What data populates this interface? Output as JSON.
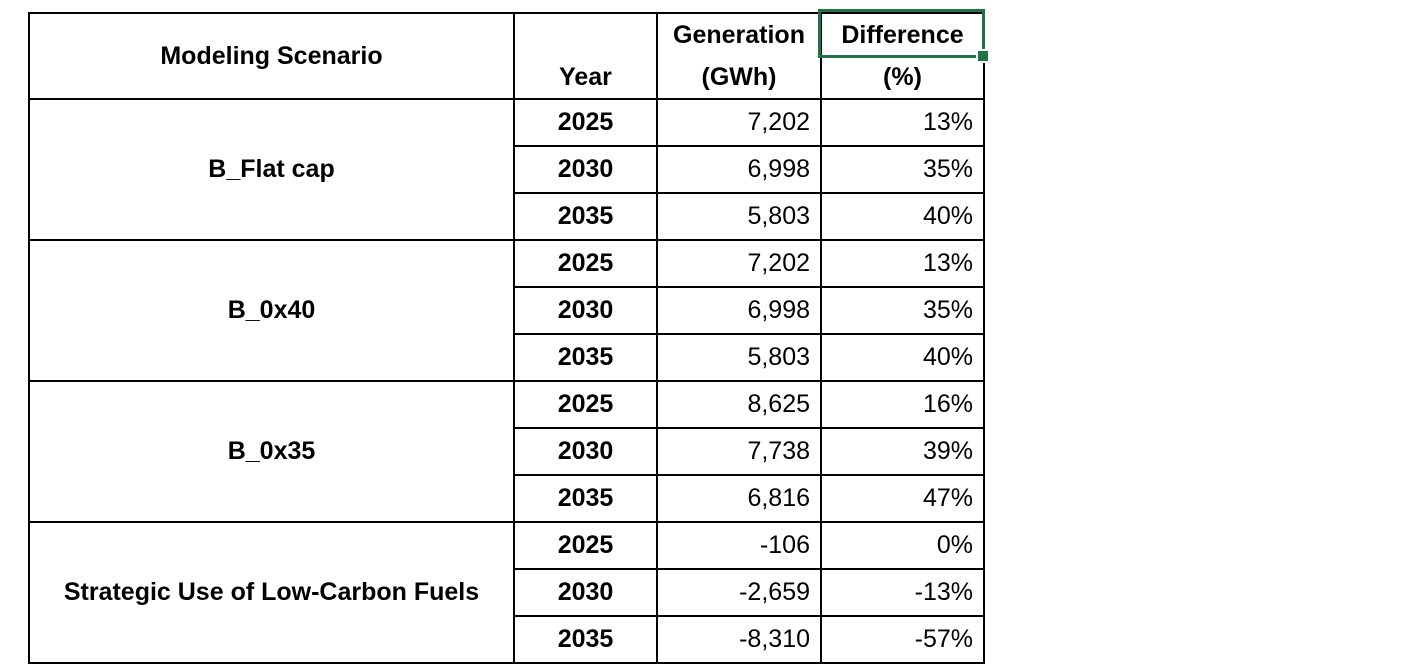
{
  "table": {
    "headers": {
      "scenario": "Modeling Scenario",
      "year": "Year",
      "generation_line1": "Generation",
      "generation_line2": "(GWh)",
      "difference_line1": "Difference",
      "difference_line2": "(%)"
    },
    "groups": [
      {
        "scenario": "B_Flat cap",
        "rows": [
          {
            "year": "2025",
            "generation": "7,202",
            "difference": "13%"
          },
          {
            "year": "2030",
            "generation": "6,998",
            "difference": "35%"
          },
          {
            "year": "2035",
            "generation": "5,803",
            "difference": "40%"
          }
        ]
      },
      {
        "scenario": "B_0x40",
        "rows": [
          {
            "year": "2025",
            "generation": "7,202",
            "difference": "13%"
          },
          {
            "year": "2030",
            "generation": "6,998",
            "difference": "35%"
          },
          {
            "year": "2035",
            "generation": "5,803",
            "difference": "40%"
          }
        ]
      },
      {
        "scenario": "B_0x35",
        "rows": [
          {
            "year": "2025",
            "generation": "8,625",
            "difference": "16%"
          },
          {
            "year": "2030",
            "generation": "7,738",
            "difference": "39%"
          },
          {
            "year": "2035",
            "generation": "6,816",
            "difference": "47%"
          }
        ]
      },
      {
        "scenario": "Strategic Use of Low-Carbon Fuels",
        "rows": [
          {
            "year": "2025",
            "generation": "-106",
            "difference": "0%"
          },
          {
            "year": "2030",
            "generation": "-2,659",
            "difference": "-13%"
          },
          {
            "year": "2035",
            "generation": "-8,310",
            "difference": "-57%"
          }
        ]
      }
    ],
    "selection": {
      "selected_cell": "Difference",
      "border_color": "#217346"
    }
  }
}
